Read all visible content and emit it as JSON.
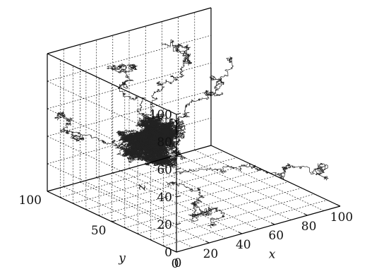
{
  "chart_data": {
    "type": "scatter",
    "projection": "3d",
    "xlabel": "x",
    "ylabel": "y",
    "zlabel": "z",
    "xlim": [
      0,
      100
    ],
    "ylim": [
      0,
      100
    ],
    "zlim": [
      0,
      100
    ],
    "xticks": [
      "0",
      "20",
      "40",
      "60",
      "80",
      "100"
    ],
    "yticks": [
      "50",
      "100"
    ],
    "zticks": [
      "0",
      "20",
      "40",
      "60",
      "80",
      "100"
    ],
    "grid": true,
    "legend": "none",
    "colors": {
      "trace": "#222222",
      "axes": "#000000"
    },
    "series": [
      {
        "center": [
          28,
          55,
          50
        ],
        "spread": 16,
        "mode": "random-walk-cluster",
        "strands": [
          {
            "from": [
              28,
              55,
              50
            ],
            "to": [
              42,
              95,
              98
            ]
          },
          {
            "from": [
              35,
              60,
              58
            ],
            "to": [
              78,
              95,
              92
            ]
          },
          {
            "from": [
              40,
              50,
              45
            ],
            "to": [
              98,
              95,
              70
            ]
          },
          {
            "from": [
              30,
              40,
              30
            ],
            "to": [
              98,
              10,
              15
            ]
          },
          {
            "from": [
              20,
              60,
              40
            ],
            "to": [
              2,
              95,
              45
            ]
          },
          {
            "from": [
              25,
              40,
              25
            ],
            "to": [
              20,
              5,
              10
            ]
          }
        ]
      }
    ]
  }
}
